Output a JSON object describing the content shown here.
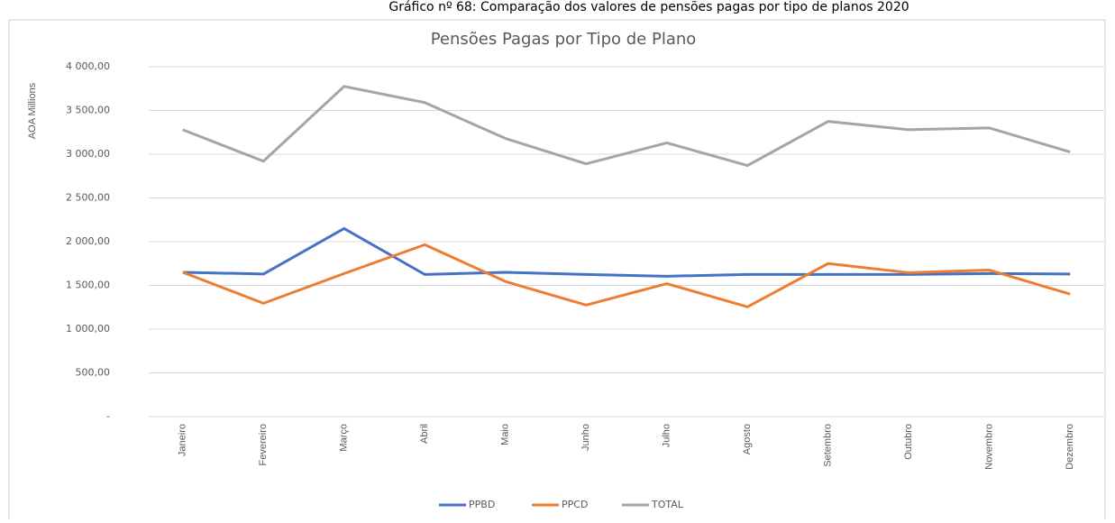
{
  "caption": "Gráfico nº 68: Comparação dos valores de pensões pagas por tipo de planos 2020",
  "chart_data": {
    "type": "line",
    "title": "Pensões Pagas por Tipo de Plano",
    "y_label": "AOA Millions",
    "categories": [
      "Janeiro",
      "Fevereiro",
      "Março",
      "Abril",
      "Maio",
      "Junho",
      "Julho",
      "Agosto",
      "Setembro",
      "Outubro",
      "Novembro",
      "Dezembro"
    ],
    "series": [
      {
        "name": "PPBD",
        "color": "#4472c4",
        "values": [
          1650,
          1630,
          2150,
          1625,
          1650,
          1625,
          1605,
          1625,
          1625,
          1625,
          1635,
          1630
        ]
      },
      {
        "name": "PPCD",
        "color": "#ed7d31",
        "values": [
          1650,
          1295,
          1635,
          1965,
          1545,
          1275,
          1520,
          1255,
          1750,
          1645,
          1675,
          1400
        ]
      },
      {
        "name": "TOTAL",
        "color": "#a5a5a5",
        "values": [
          3280,
          2920,
          3775,
          3590,
          3180,
          2890,
          3130,
          2870,
          3375,
          3280,
          3300,
          3025
        ]
      }
    ],
    "ylim": [
      0,
      4000
    ],
    "yticks": [
      {
        "value": 0,
        "label": "-"
      },
      {
        "value": 500,
        "label": "500,00"
      },
      {
        "value": 1000,
        "label": "1 000,00"
      },
      {
        "value": 1500,
        "label": "1 500,00"
      },
      {
        "value": 2000,
        "label": "2 000,00"
      },
      {
        "value": 2500,
        "label": "2 500,00"
      },
      {
        "value": 3000,
        "label": "3 000,00"
      },
      {
        "value": 3500,
        "label": "3 500,00"
      },
      {
        "value": 4000,
        "label": "4 000,00"
      }
    ],
    "grid": true,
    "legend": "bottom"
  }
}
